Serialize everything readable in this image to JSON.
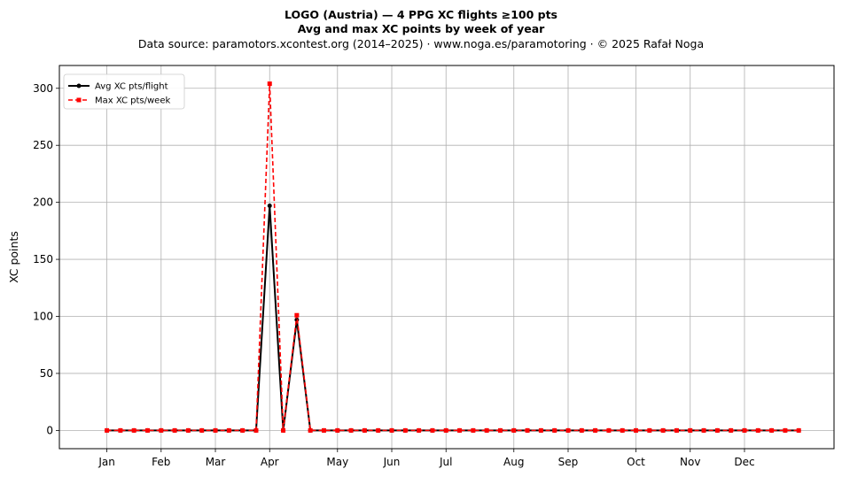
{
  "chart_data": {
    "type": "line",
    "title_line1": "LOGO (Austria)  —  4 PPG XC flights ≥100 pts",
    "title_line2": "Avg and max XC points by week of year",
    "subtitle": "Data source: paramotors.xcontest.org (2014–2025)  ·  www.noga.es/paramotoring  ·  © 2025 Rafał Noga",
    "xlabel": "",
    "ylabel": "XC points",
    "x_range": [
      -2.5,
      54.6
    ],
    "ylim": [
      -16,
      320
    ],
    "yticks": [
      0,
      50,
      100,
      150,
      200,
      250,
      300
    ],
    "grid": true,
    "legend_position": "top-left",
    "month_ticks": [
      {
        "week": 1,
        "label": "Jan"
      },
      {
        "week": 5,
        "label": "Feb"
      },
      {
        "week": 9,
        "label": "Mar"
      },
      {
        "week": 13,
        "label": "Apr"
      },
      {
        "week": 18,
        "label": "May"
      },
      {
        "week": 22,
        "label": "Jun"
      },
      {
        "week": 26,
        "label": "Jul"
      },
      {
        "week": 31,
        "label": "Aug"
      },
      {
        "week": 35,
        "label": "Sep"
      },
      {
        "week": 40,
        "label": "Oct"
      },
      {
        "week": 44,
        "label": "Nov"
      },
      {
        "week": 48,
        "label": "Dec"
      }
    ],
    "x": [
      1,
      2,
      3,
      4,
      5,
      6,
      7,
      8,
      9,
      10,
      11,
      12,
      13,
      14,
      15,
      16,
      17,
      18,
      19,
      20,
      21,
      22,
      23,
      24,
      25,
      26,
      27,
      28,
      29,
      30,
      31,
      32,
      33,
      34,
      35,
      36,
      37,
      38,
      39,
      40,
      41,
      42,
      43,
      44,
      45,
      46,
      47,
      48,
      49,
      50,
      51,
      52
    ],
    "series": [
      {
        "name": "Avg XC pts/flight",
        "color": "#000000",
        "style": "solid",
        "marker": "circle",
        "values": [
          0,
          0,
          0,
          0,
          0,
          0,
          0,
          0,
          0,
          0,
          0,
          0,
          197,
          0,
          97,
          0,
          0,
          0,
          0,
          0,
          0,
          0,
          0,
          0,
          0,
          0,
          0,
          0,
          0,
          0,
          0,
          0,
          0,
          0,
          0,
          0,
          0,
          0,
          0,
          0,
          0,
          0,
          0,
          0,
          0,
          0,
          0,
          0,
          0,
          0,
          0,
          0
        ]
      },
      {
        "name": "Max XC pts/week",
        "color": "#ff0000",
        "style": "dashed",
        "marker": "square",
        "values": [
          0,
          0,
          0,
          0,
          0,
          0,
          0,
          0,
          0,
          0,
          0,
          0,
          304,
          0,
          101,
          0,
          0,
          0,
          0,
          0,
          0,
          0,
          0,
          0,
          0,
          0,
          0,
          0,
          0,
          0,
          0,
          0,
          0,
          0,
          0,
          0,
          0,
          0,
          0,
          0,
          0,
          0,
          0,
          0,
          0,
          0,
          0,
          0,
          0,
          0,
          0,
          0
        ]
      }
    ]
  }
}
